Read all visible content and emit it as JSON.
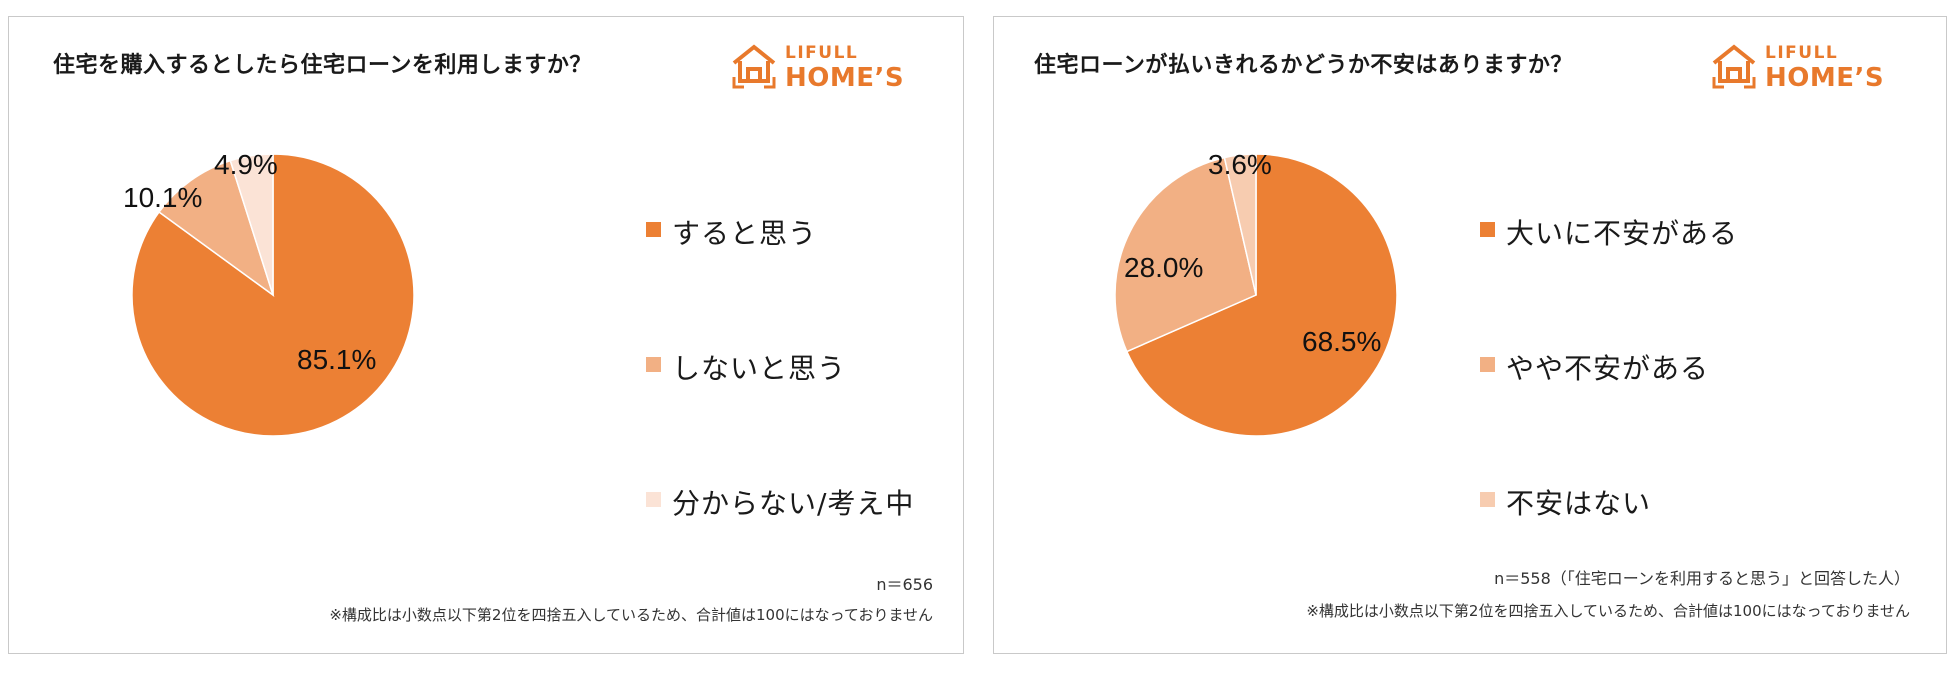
{
  "logo": {
    "line1": "LIFULL",
    "line2": "HOME’S"
  },
  "colors": {
    "accent": "#e8792c"
  },
  "chart_data": [
    {
      "type": "pie",
      "title": "住宅を購入するとしたら住宅ローンを利用しますか？",
      "series": [
        {
          "name": "すると思う",
          "value": 85.1,
          "label": "85.1%",
          "color": "#ec8034"
        },
        {
          "name": "しないと思う",
          "value": 10.1,
          "label": "10.1%",
          "color": "#f2b084"
        },
        {
          "name": "分からない/考え中",
          "value": 4.9,
          "label": "4.9%",
          "color": "#fbe3d6"
        }
      ],
      "legend": "right",
      "sample_note": "n＝656",
      "footnote": "※構成比は小数点以下第2位を四捨五入しているため、合計値は100にはなっておりません"
    },
    {
      "type": "pie",
      "title": "住宅ローンが払いきれるかどうか不安はありますか？",
      "series": [
        {
          "name": "大いに不安がある",
          "value": 68.5,
          "label": "68.5%",
          "color": "#ec8034"
        },
        {
          "name": "やや不安がある",
          "value": 28.0,
          "label": "28.0%",
          "color": "#f2b084"
        },
        {
          "name": "不安はない",
          "value": 3.6,
          "label": "3.6%",
          "color": "#f7ccb0"
        }
      ],
      "legend": "right",
      "sample_note": "n＝558（「住宅ローンを利用すると思う」と回答した人）",
      "footnote": "※構成比は小数点以下第2位を四捨五入しているため、合計値は100にはなっておりません"
    }
  ]
}
